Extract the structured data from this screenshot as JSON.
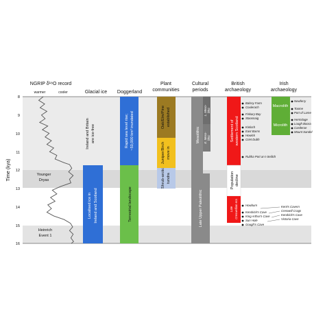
{
  "headers": {
    "ngrip": "NGRIP δ¹⁸O record",
    "warmer": "warmer",
    "cooler": "cooler",
    "glacial_ice": "Glacial ice",
    "doggerland": "Doggerland",
    "plant_line1": "Plant",
    "plant_line2": "communities",
    "cultural_line1": "Cultural",
    "cultural_line2": "periods",
    "british_line1": "British",
    "british_line2": "archaeology",
    "irish_line1": "Irish",
    "irish_line2": "archaeology"
  },
  "y_axis": {
    "label": "Time (kya)",
    "ticks": [
      "8",
      "9",
      "10",
      "11",
      "12",
      "13",
      "14",
      "15",
      "16"
    ]
  },
  "events": {
    "younger_dryas_line1": "Younger",
    "younger_dryas_line2": "Dryas",
    "heinrich_line1": "Heinrich",
    "heinrich_line2": "Event 1"
  },
  "glacial_ice": {
    "ice_free_line1": "Ireland and Britain",
    "ice_free_line2": "are ice-free",
    "localised_line1": "Localised ice in",
    "localised_line2": "Ireland and Scotland"
  },
  "doggerland": {
    "sea_line1": "Rapid sea level rise;",
    "sea_line2": "~50,000 km² inundated",
    "terrestrial": "Terrestrial landscape"
  },
  "plants": {
    "oak_line1": "Oak/Elm/Pine",
    "oak_line2": "established",
    "juniper_line1": "Juniper/Birch",
    "juniper_line2": "move in",
    "shrub_line1": "Shrub-arctic",
    "shrub_line2": "tundra"
  },
  "cultural": {
    "mesolithic": "Mesolithic",
    "lupper": "Late Upper Paleolithic",
    "l_meso_line1": "L. Meso-",
    "l_meso_line2": "lithic",
    "e_meso_line1": "E. Meso-",
    "e_meso_line2": "lithic"
  },
  "british": {
    "settlement_line1": "Settlement of",
    "settlement_line2": "western Scotland",
    "decline_line1": "Population",
    "decline_line2": "decline",
    "creswellian_line1": "Late",
    "creswellian_line2": "Creswellian era",
    "sites": [
      "Balssy Farm",
      "Coulerach",
      "Fiskary Bay",
      "Staosnaig",
      "Kinloch",
      "East Barns",
      "Howick",
      "Criet Dubh",
      "Rubha Port an t-Seilich",
      "Howburn",
      "Kendrick's Cave",
      "King Arthur's Cave",
      "Sun Hole",
      "Gough's Cave"
    ]
  },
  "irish": {
    "macrolith": "Macrolith",
    "microlith": "Microlith",
    "sites": [
      "Newferry",
      "Toome",
      "Port of Larne",
      "Hermitage",
      "Lough Boora",
      "Castlerоe",
      "Mount Sandel"
    ],
    "cave_sites": [
      "Kent's Cavern",
      "Creswell Crags",
      "Kendrick's Cave",
      "Victoria Cave"
    ]
  },
  "colors": {
    "band_light": "#ebebeb",
    "band_dark": "#d5d5d5",
    "ice_blue": "#2f6fd6",
    "dogger_green": "#6bbf4a",
    "oak_brown": "#9c7a22",
    "juniper_gold": "#f2c01e",
    "shrub_blue": "#b8c9e8",
    "cultural_gray": "#8a8a8a",
    "british_red": "#f01818",
    "irish_green": "#5fae36"
  },
  "ngrip_series": [
    [
      8.0,
      0.32
    ],
    [
      8.2,
      0.22
    ],
    [
      8.4,
      0.35
    ],
    [
      8.6,
      0.25
    ],
    [
      8.8,
      0.4
    ],
    [
      9.0,
      0.28
    ],
    [
      9.2,
      0.36
    ],
    [
      9.4,
      0.24
    ],
    [
      9.6,
      0.42
    ],
    [
      9.8,
      0.3
    ],
    [
      10.0,
      0.45
    ],
    [
      10.2,
      0.36
    ],
    [
      10.4,
      0.5
    ],
    [
      10.6,
      0.4
    ],
    [
      10.8,
      0.55
    ],
    [
      11.0,
      0.46
    ],
    [
      11.2,
      0.62
    ],
    [
      11.4,
      0.58
    ],
    [
      11.6,
      0.78
    ],
    [
      11.7,
      0.9
    ],
    [
      11.9,
      0.95
    ],
    [
      12.1,
      0.88
    ],
    [
      12.3,
      0.98
    ],
    [
      12.5,
      0.9
    ],
    [
      12.7,
      0.93
    ],
    [
      12.9,
      0.7
    ],
    [
      13.1,
      0.52
    ],
    [
      13.3,
      0.62
    ],
    [
      13.5,
      0.48
    ],
    [
      13.7,
      0.58
    ],
    [
      13.9,
      0.42
    ],
    [
      14.1,
      0.5
    ],
    [
      14.3,
      0.4
    ],
    [
      14.5,
      0.55
    ],
    [
      14.7,
      0.78
    ],
    [
      14.9,
      0.92
    ],
    [
      15.1,
      0.97
    ],
    [
      15.3,
      0.9
    ],
    [
      15.5,
      0.98
    ],
    [
      15.7,
      0.93
    ],
    [
      15.9,
      0.99
    ],
    [
      16.0,
      0.94
    ]
  ]
}
